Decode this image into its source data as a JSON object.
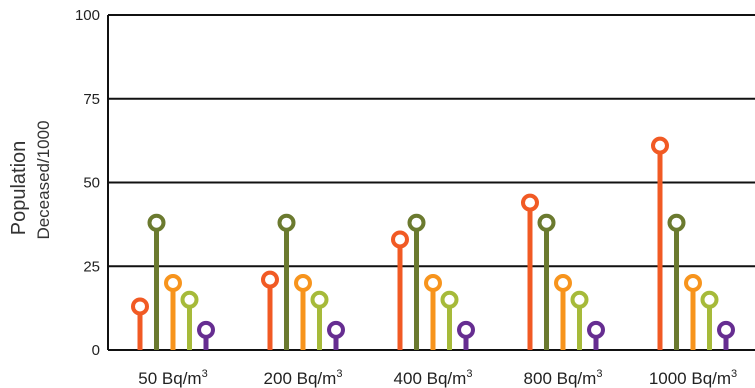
{
  "chart_data": {
    "type": "lollipop",
    "ylabel_line1": "Population",
    "ylabel_line2": "Deceased/1000",
    "ylim": [
      0,
      100
    ],
    "yticks": [
      0,
      25,
      50,
      75,
      100
    ],
    "grid": true,
    "categories": [
      {
        "prefix": "50 Bq/m",
        "sup": "3"
      },
      {
        "prefix": "200 Bq/m",
        "sup": "3"
      },
      {
        "prefix": "400 Bq/m",
        "sup": "3"
      },
      {
        "prefix": "800 Bq/m",
        "sup": "3"
      },
      {
        "prefix": "1000 Bq/m",
        "sup": "3"
      }
    ],
    "series": [
      {
        "color": "#f15a24",
        "values": [
          13,
          21,
          33,
          44,
          61
        ]
      },
      {
        "color": "#6b7a2f",
        "values": [
          38,
          38,
          38,
          38,
          38
        ]
      },
      {
        "color": "#f7941d",
        "values": [
          20,
          20,
          20,
          20,
          20
        ]
      },
      {
        "color": "#a6ba3a",
        "values": [
          15,
          15,
          15,
          15,
          15
        ]
      },
      {
        "color": "#662d91",
        "values": [
          6,
          6,
          6,
          6,
          6
        ]
      }
    ]
  }
}
